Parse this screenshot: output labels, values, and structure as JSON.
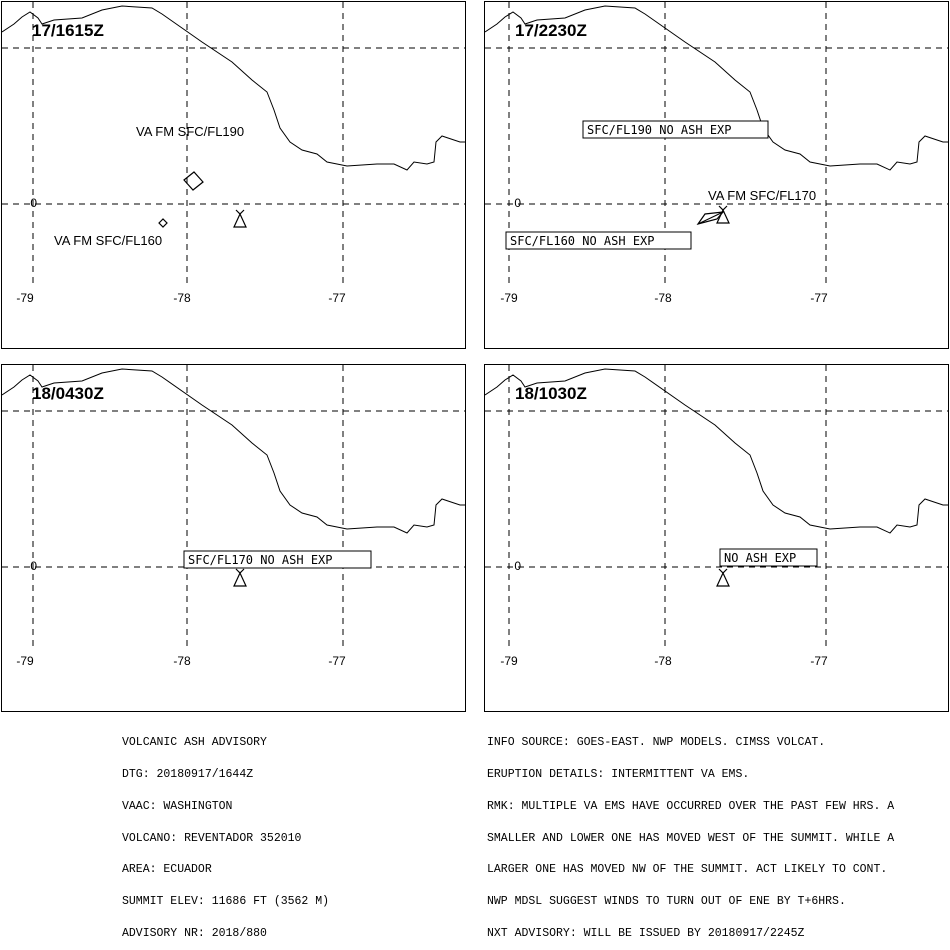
{
  "panels": [
    {
      "time": "17/1615Z",
      "lon_ticks": [
        "-79",
        "-78",
        "-77"
      ],
      "lat_tick": "0",
      "labels": [
        "VA FM SFC/FL190",
        "VA FM SFC/FL160"
      ]
    },
    {
      "time": "17/2230Z",
      "lon_ticks": [
        "-79",
        "-78",
        "-77"
      ],
      "lat_tick": "0",
      "labels": [
        "VA FM SFC/FL170"
      ],
      "boxed_labels": [
        "SFC/FL190 NO ASH EXP",
        "SFC/FL160 NO ASH EXP"
      ]
    },
    {
      "time": "18/0430Z",
      "lon_ticks": [
        "-79",
        "-78",
        "-77"
      ],
      "lat_tick": "0",
      "boxed_labels": [
        "SFC/FL170 NO ASH EXP"
      ]
    },
    {
      "time": "18/1030Z",
      "lon_ticks": [
        "-79",
        "-78",
        "-77"
      ],
      "lat_tick": "0",
      "boxed_labels": [
        "NO ASH EXP"
      ]
    }
  ],
  "info_left": [
    "VOLCANIC ASH ADVISORY",
    "DTG: 20180917/1644Z",
    "VAAC: WASHINGTON",
    "VOLCANO: REVENTADOR 352010",
    "AREA: ECUADOR",
    "SUMMIT ELEV: 11686 FT (3562 M)",
    "ADVISORY NR: 2018/880"
  ],
  "info_right": [
    "INFO SOURCE: GOES-EAST. NWP MODELS. CIMSS VOLCAT.",
    "ERUPTION DETAILS: INTERMITTENT VA EMS.",
    "RMK: MULTIPLE VA EMS HAVE OCCURRED OVER THE PAST FEW HRS. A",
    "SMALLER AND LOWER ONE HAS MOVED WEST OF THE SUMMIT. WHILE A",
    "LARGER ONE HAS MOVED NW OF THE SUMMIT. ACT LIKELY TO CONT.",
    "NWP MDSL SUGGEST WINDS TO TURN OUT OF ENE BY T+6HRS.",
    "NXT ADVISORY: WILL BE ISSUED BY 20180917/2245Z"
  ]
}
